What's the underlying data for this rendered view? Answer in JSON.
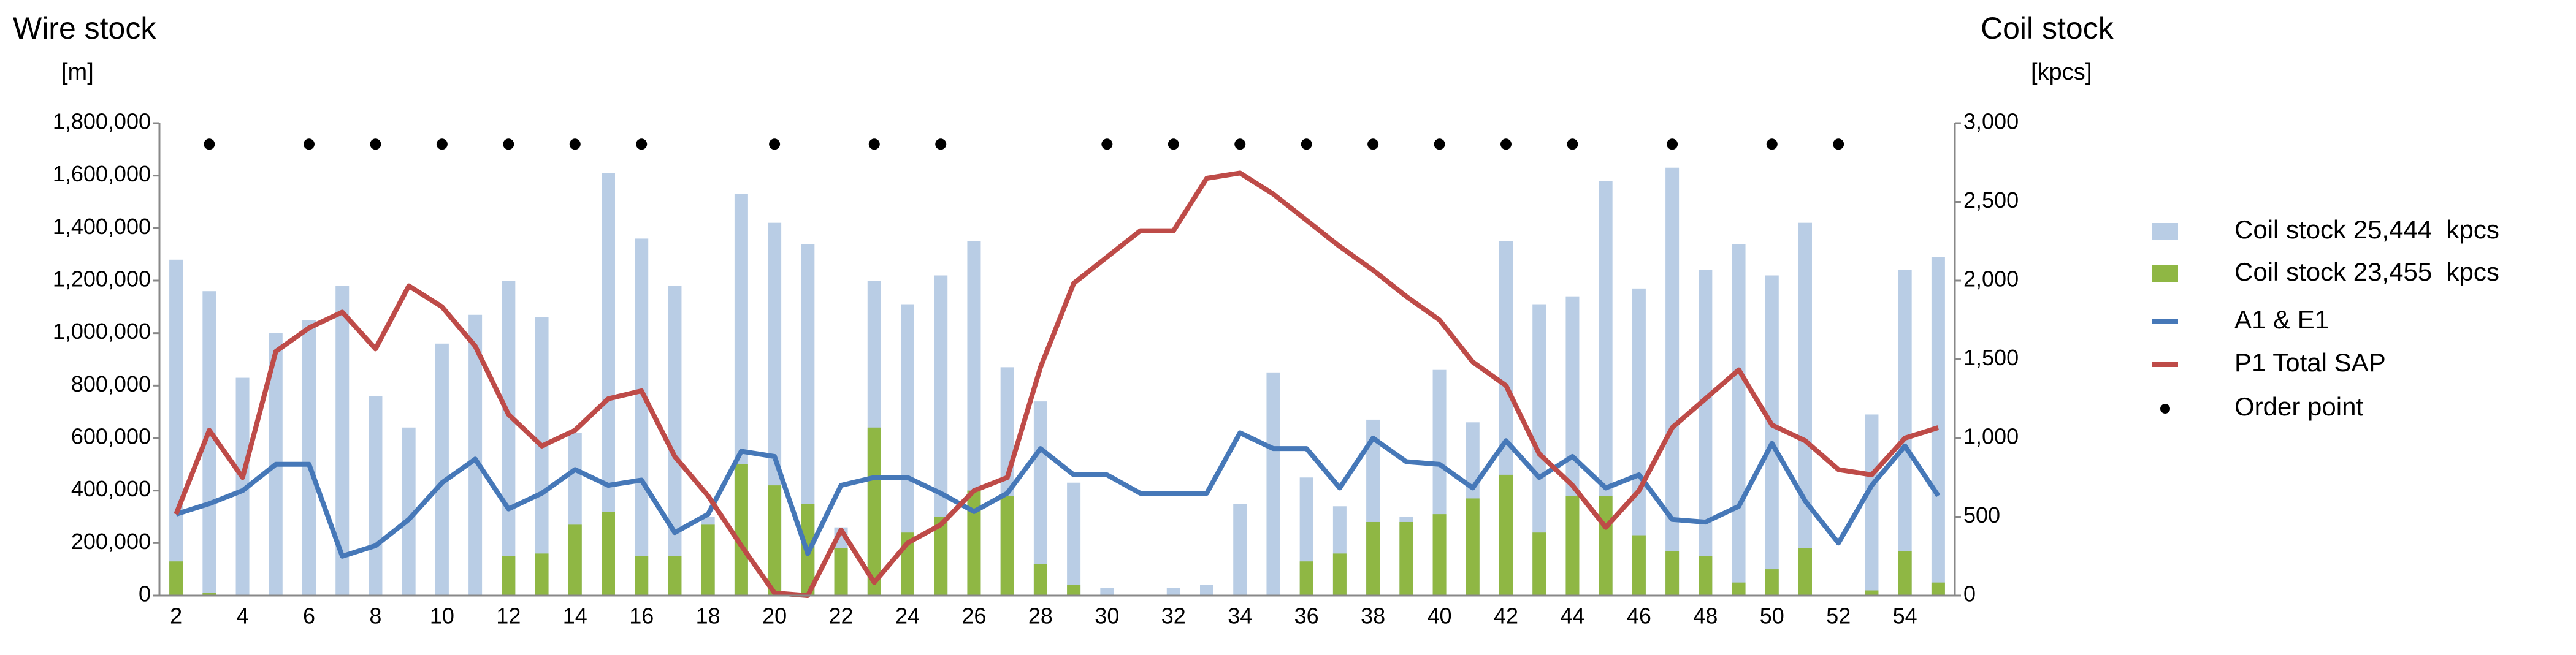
{
  "chart_data": {
    "type": "bar",
    "y_title": "Wire stock",
    "y_unit": "[m]",
    "y2_title": "Coil stock",
    "y2_unit": "[kpcs]",
    "categories": [
      "2",
      null,
      "4",
      null,
      "6",
      null,
      "8",
      null,
      "10",
      null,
      "12",
      null,
      "14",
      null,
      "16",
      null,
      "18",
      null,
      "20",
      null,
      "22",
      null,
      "24",
      null,
      "26",
      null,
      "28",
      null,
      "30",
      null,
      "32",
      null,
      "34",
      null,
      "36",
      null,
      "38",
      null,
      "40",
      null,
      "42",
      null,
      "44",
      null,
      "46",
      null,
      "48",
      null,
      "50",
      null,
      "52",
      null,
      "54",
      null
    ],
    "ylim": [
      0,
      1800000
    ],
    "yticks": [
      0,
      {
        "value": 200000,
        "label": "200,000"
      },
      {
        "value": 400000,
        "label": "400,000"
      },
      {
        "value": 600000,
        "label": "600,000"
      },
      {
        "value": 800000,
        "label": "800,000"
      },
      {
        "value": 1000000,
        "label": "1,000,000"
      },
      {
        "value": 1200000,
        "label": "1,200,000"
      },
      {
        "value": 1400000,
        "label": "1,400,000"
      },
      {
        "value": 1600000,
        "label": "1,600,000"
      },
      {
        "value": 1800000,
        "label": "1,800,000"
      }
    ],
    "y2lim": [
      0,
      3000
    ],
    "y2ticks": [
      0,
      500,
      {
        "value": 1000,
        "label": "1,000"
      },
      {
        "value": 1500,
        "label": "1,500"
      },
      {
        "value": 2000,
        "label": "2,000"
      },
      {
        "value": 2500,
        "label": "2,500"
      },
      {
        "value": 3000,
        "label": "3,000"
      }
    ],
    "series": [
      {
        "name": "Coil stock 25,444  kpcs",
        "type": "bar",
        "axis": "y2",
        "color": "#b9cde5",
        "values": [
          2133,
          1933,
          1383,
          1667,
          1750,
          1967,
          1267,
          1067,
          1600,
          1783,
          2000,
          1767,
          1033,
          2683,
          2267,
          1967,
          500,
          2550,
          2367,
          2233,
          433,
          2000,
          1850,
          2033,
          2250,
          1450,
          1233,
          717,
          50,
          0,
          50,
          67,
          583,
          1417,
          750,
          567,
          1117,
          500,
          1433,
          1100,
          2250,
          1850,
          1900,
          2633,
          1950,
          2717,
          2067,
          2233,
          2033,
          2367,
          0,
          1150,
          2067,
          2150
        ]
      },
      {
        "name": "Coil stock 23,455  kpcs",
        "type": "bar",
        "axis": "y2",
        "color": "#8fb744",
        "values": [
          217,
          17,
          0,
          0,
          0,
          0,
          0,
          0,
          0,
          0,
          250,
          267,
          450,
          533,
          250,
          250,
          450,
          833,
          700,
          583,
          300,
          1067,
          400,
          500,
          667,
          633,
          200,
          67,
          0,
          0,
          0,
          0,
          0,
          0,
          217,
          267,
          467,
          467,
          517,
          617,
          767,
          400,
          633,
          633,
          383,
          283,
          250,
          83,
          167,
          300,
          0,
          33,
          283,
          83
        ]
      },
      {
        "name": "A1 & E1",
        "type": "line",
        "color": "#4678b8",
        "values": [
          310000,
          350000,
          400000,
          500000,
          500000,
          150000,
          190000,
          290000,
          430000,
          520000,
          330000,
          390000,
          480000,
          420000,
          440000,
          240000,
          310000,
          550000,
          530000,
          160000,
          420000,
          450000,
          450000,
          390000,
          320000,
          390000,
          560000,
          460000,
          460000,
          390000,
          390000,
          390000,
          620000,
          560000,
          560000,
          410000,
          600000,
          510000,
          500000,
          410000,
          590000,
          450000,
          530000,
          410000,
          460000,
          290000,
          280000,
          340000,
          580000,
          360000,
          200000,
          420000,
          570000,
          380000
        ]
      },
      {
        "name": "P1 Total SAP",
        "type": "line",
        "color": "#be4b48",
        "values": [
          310000,
          630000,
          450000,
          930000,
          1020000,
          1080000,
          940000,
          1180000,
          1100000,
          950000,
          690000,
          570000,
          630000,
          750000,
          780000,
          530000,
          380000,
          190000,
          10000,
          0,
          250000,
          50000,
          200000,
          270000,
          400000,
          450000,
          870000,
          1190000,
          1290000,
          1390000,
          1390000,
          1590000,
          1610000,
          1530000,
          1430000,
          1330000,
          1240000,
          1140000,
          1050000,
          890000,
          800000,
          540000,
          420000,
          260000,
          400000,
          640000,
          750000,
          860000,
          650000,
          590000,
          480000,
          460000,
          600000,
          640000
        ]
      },
      {
        "name": "Order point",
        "type": "scatter",
        "color": "#000000",
        "values": [
          null,
          1720000,
          null,
          null,
          1720000,
          null,
          1720000,
          null,
          1720000,
          null,
          1720000,
          null,
          1720000,
          null,
          1720000,
          null,
          null,
          null,
          1720000,
          null,
          null,
          1720000,
          null,
          1720000,
          null,
          null,
          null,
          null,
          1720000,
          null,
          1720000,
          null,
          1720000,
          null,
          1720000,
          null,
          1720000,
          null,
          1720000,
          null,
          1720000,
          null,
          1720000,
          null,
          null,
          1720000,
          null,
          null,
          1720000,
          null,
          1720000,
          null,
          null,
          null
        ]
      }
    ]
  }
}
